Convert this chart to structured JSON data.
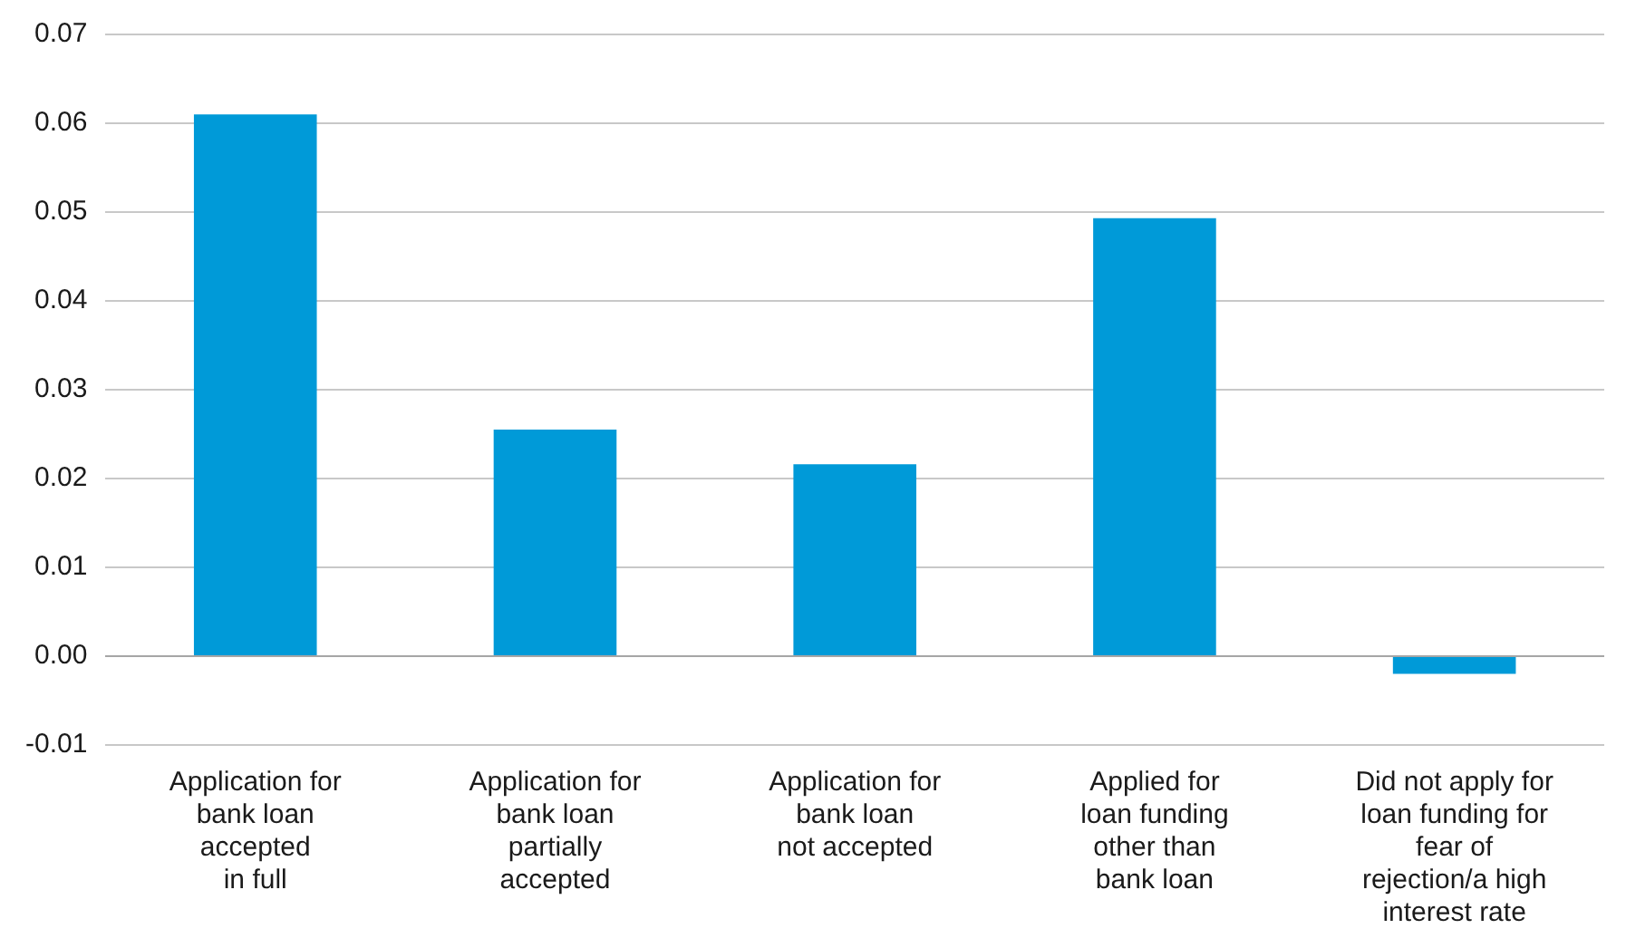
{
  "chart_data": {
    "type": "bar",
    "categories": [
      "Application for\nbank loan\naccepted\nin full",
      "Application for\nbank loan\npartially\naccepted",
      "Application for\nbank loan\nnot accepted",
      "Applied for\nloan funding\nother than\nbank loan",
      "Did not apply for\nloan funding for\nfear of\nrejection/a high\ninterest rate"
    ],
    "values": [
      0.061,
      0.0255,
      0.0216,
      0.0493,
      -0.002
    ],
    "color": "#009ad8",
    "ylim": [
      -0.01,
      0.07
    ],
    "yticks": [
      {
        "value": -0.01,
        "label": "-0.01"
      },
      {
        "value": 0,
        "label": "0.00"
      },
      {
        "value": 0.01,
        "label": "0.01"
      },
      {
        "value": 0.02,
        "label": "0.02"
      },
      {
        "value": 0.03,
        "label": "0.03"
      },
      {
        "value": 0.04,
        "label": "0.04"
      },
      {
        "value": 0.05,
        "label": "0.05"
      },
      {
        "value": 0.06,
        "label": "0.06"
      },
      {
        "value": 0.07,
        "label": "0.07"
      }
    ],
    "grid": "y"
  }
}
